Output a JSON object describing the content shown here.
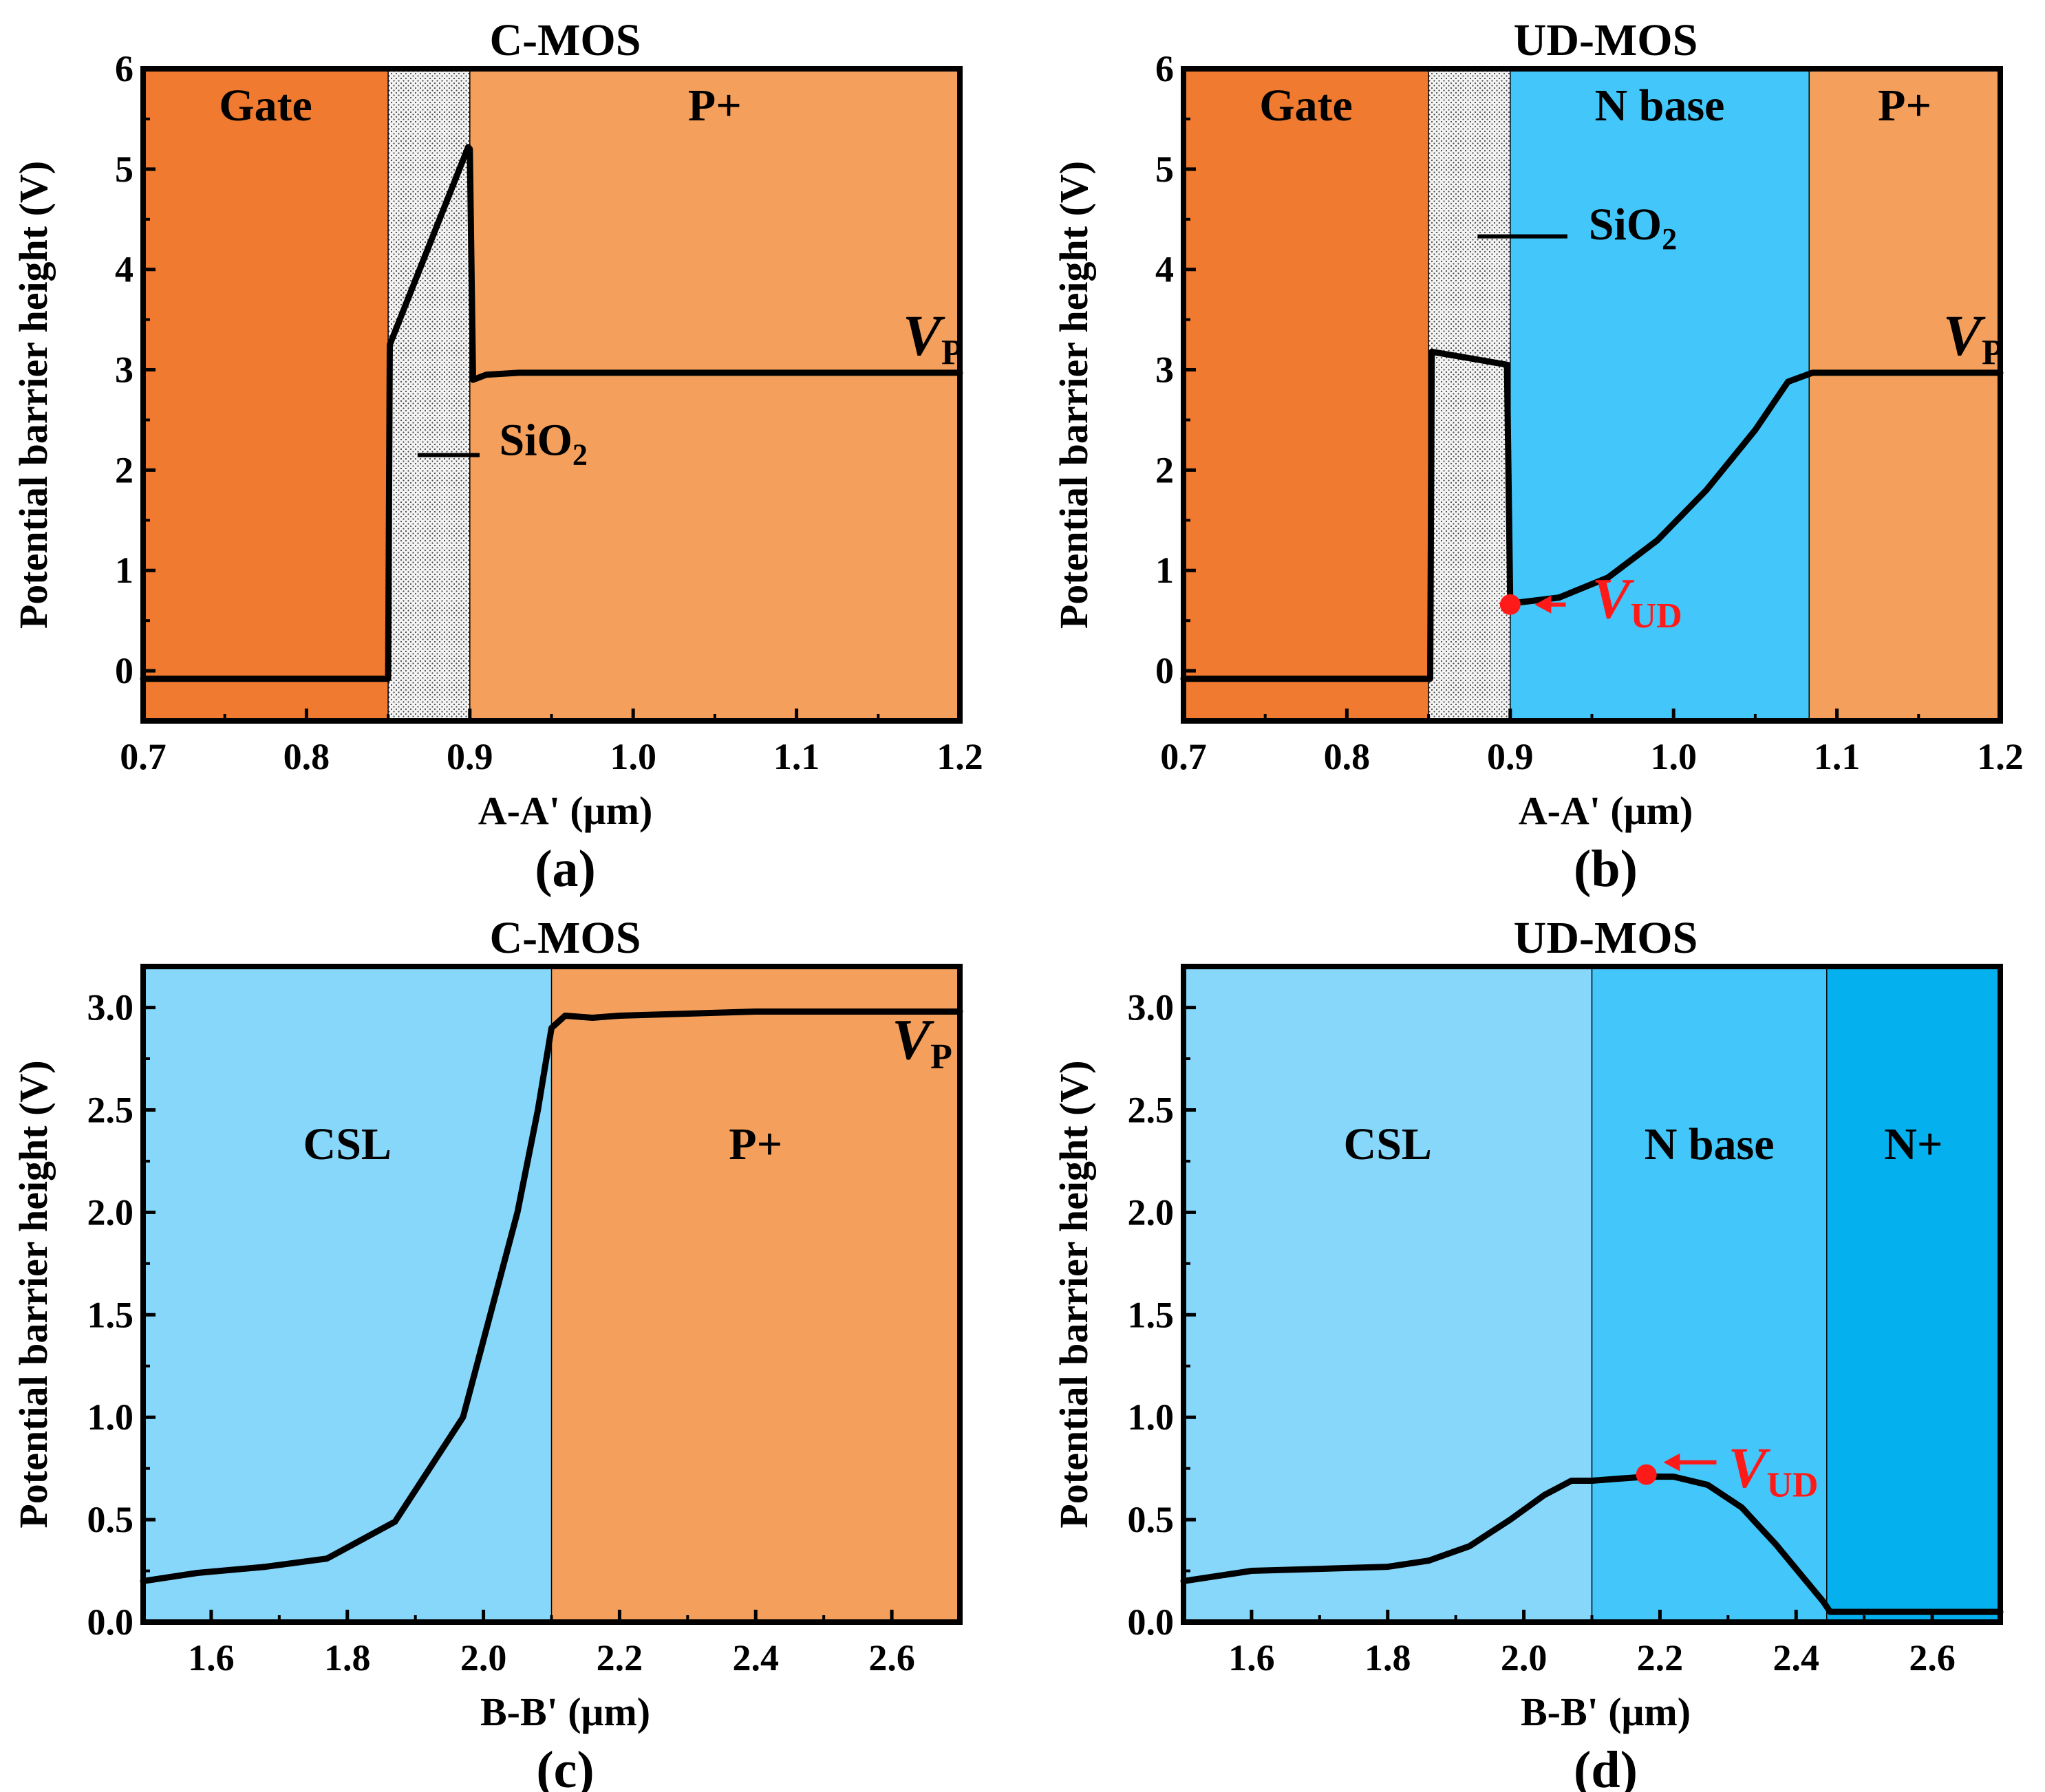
{
  "colors": {
    "gate": "#ef7a30",
    "p_plus": "#f4a05c",
    "csl": "#87d7fb",
    "n_base": "#43c7fb",
    "n_plus": "#05b0ee",
    "oxide": "#f4f4f4",
    "curve": "#000000",
    "marker": "#ff1a1a"
  },
  "chart_data": [
    {
      "panel": "a",
      "type": "line",
      "title": "C-MOS",
      "xlabel": "A-A' (μm)",
      "ylabel": "Potential barrier height (V)",
      "caption": "(a)",
      "xlim": [
        0.7,
        1.2
      ],
      "ylim": [
        -0.5,
        6
      ],
      "xticks": [
        0.7,
        0.8,
        0.9,
        1.0,
        1.1,
        1.2
      ],
      "xtick_labels": [
        "0.7",
        "0.8",
        "0.9",
        "1.0",
        "1.1",
        "1.2"
      ],
      "yticks": [
        0,
        1,
        2,
        3,
        4,
        5,
        6
      ],
      "ytick_labels": [
        "0",
        "1",
        "2",
        "3",
        "4",
        "5",
        "6"
      ],
      "regions": [
        {
          "label": "Gate",
          "x0": 0.7,
          "x1": 0.85,
          "fill": "gate"
        },
        {
          "label": "",
          "x0": 0.85,
          "x1": 0.9,
          "fill": "oxide"
        },
        {
          "label": "P+",
          "x0": 0.9,
          "x1": 1.2,
          "fill": "p_plus"
        }
      ],
      "series": [
        {
          "x": [
            0.7,
            0.85,
            0.851,
            0.899,
            0.9,
            0.902,
            0.91,
            0.93,
            0.97,
            1.2
          ],
          "y": [
            -0.08,
            -0.08,
            3.25,
            5.22,
            5.2,
            2.9,
            2.95,
            2.97,
            2.97,
            2.97
          ]
        }
      ],
      "annotations": [
        {
          "text": "SiO",
          "sub": "2",
          "at": [
            0.918,
            2.15
          ],
          "line_from": [
            0.868,
            2.15
          ],
          "line_to": [
            0.906,
            2.15
          ]
        },
        {
          "text": "V",
          "sub": "P",
          "italic": true,
          "at": [
            1.165,
            3.15
          ]
        }
      ]
    },
    {
      "panel": "b",
      "type": "line",
      "title": "UD-MOS",
      "xlabel": "A-A' (μm)",
      "ylabel": "Potential barrier height (V)",
      "caption": "(b)",
      "xlim": [
        0.7,
        1.2
      ],
      "ylim": [
        -0.5,
        6
      ],
      "xticks": [
        0.7,
        0.8,
        0.9,
        1.0,
        1.1,
        1.2
      ],
      "xtick_labels": [
        "0.7",
        "0.8",
        "0.9",
        "1.0",
        "1.1",
        "1.2"
      ],
      "yticks": [
        0,
        1,
        2,
        3,
        4,
        5,
        6
      ],
      "ytick_labels": [
        "0",
        "1",
        "2",
        "3",
        "4",
        "5",
        "6"
      ],
      "regions": [
        {
          "label": "Gate",
          "x0": 0.7,
          "x1": 0.85,
          "fill": "gate"
        },
        {
          "label": "",
          "x0": 0.85,
          "x1": 0.9,
          "fill": "oxide"
        },
        {
          "label": "N base",
          "x0": 0.9,
          "x1": 1.083,
          "fill": "n_base"
        },
        {
          "label": "P+",
          "x0": 1.083,
          "x1": 1.2,
          "fill": "p_plus"
        }
      ],
      "series": [
        {
          "x": [
            0.7,
            0.851,
            0.852,
            0.898,
            0.9,
            0.905,
            0.93,
            0.96,
            0.99,
            1.02,
            1.05,
            1.07,
            1.085,
            1.2
          ],
          "y": [
            -0.08,
            -0.08,
            3.18,
            3.05,
            0.68,
            0.68,
            0.73,
            0.93,
            1.3,
            1.8,
            2.4,
            2.88,
            2.97,
            2.97
          ]
        }
      ],
      "marker": {
        "x": 0.9,
        "y": 0.66
      },
      "annotations": [
        {
          "text": "SiO",
          "sub": "2",
          "at": [
            0.948,
            4.3
          ],
          "line_from": [
            0.88,
            4.33
          ],
          "line_to": [
            0.935,
            4.33
          ]
        },
        {
          "text": "V",
          "sub": "P",
          "italic": true,
          "at": [
            1.165,
            3.15
          ]
        },
        {
          "text": "V",
          "sub": "UD",
          "italic": true,
          "marker_label": true,
          "at": [
            0.95,
            0.53
          ],
          "arrow_from": [
            0.934,
            0.66
          ],
          "arrow_to": [
            0.915,
            0.66
          ]
        }
      ]
    },
    {
      "panel": "c",
      "type": "line",
      "title": "C-MOS",
      "xlabel": "B-B' (μm)",
      "ylabel": "Potential barrier height (V)",
      "caption": "(c)",
      "xlim": [
        1.5,
        2.7
      ],
      "ylim": [
        0,
        3.2
      ],
      "xticks": [
        1.6,
        1.8,
        2.0,
        2.2,
        2.4,
        2.6
      ],
      "xtick_labels": [
        "1.6",
        "1.8",
        "2.0",
        "2.2",
        "2.4",
        "2.6"
      ],
      "yticks": [
        0,
        0.5,
        1.0,
        1.5,
        2.0,
        2.5,
        3.0
      ],
      "ytick_labels": [
        "0.0",
        "0.5",
        "1.0",
        "1.5",
        "2.0",
        "2.5",
        "3.0"
      ],
      "regions": [
        {
          "label": "CSL",
          "x0": 1.5,
          "x1": 2.1,
          "fill": "csl"
        },
        {
          "label": "P+",
          "x0": 2.1,
          "x1": 2.7,
          "fill": "p_plus"
        }
      ],
      "series": [
        {
          "x": [
            1.5,
            1.58,
            1.68,
            1.77,
            1.87,
            1.97,
            2.05,
            2.08,
            2.1,
            2.12,
            2.16,
            2.2,
            2.4,
            2.7
          ],
          "y": [
            0.2,
            0.24,
            0.27,
            0.31,
            0.49,
            1.0,
            2.0,
            2.5,
            2.9,
            2.96,
            2.95,
            2.96,
            2.98,
            2.98
          ]
        }
      ],
      "annotations": [
        {
          "text": "V",
          "sub": "P",
          "italic": true,
          "at": [
            2.6,
            2.75
          ]
        }
      ]
    },
    {
      "panel": "d",
      "type": "line",
      "title": "UD-MOS",
      "xlabel": "B-B' (μm)",
      "ylabel": "Potential barrier height (V)",
      "caption": "(d)",
      "xlim": [
        1.5,
        2.7
      ],
      "ylim": [
        0,
        3.2
      ],
      "xticks": [
        1.6,
        1.8,
        2.0,
        2.2,
        2.4,
        2.6
      ],
      "xtick_labels": [
        "1.6",
        "1.8",
        "2.0",
        "2.2",
        "2.4",
        "2.6"
      ],
      "yticks": [
        0,
        0.5,
        1.0,
        1.5,
        2.0,
        2.5,
        3.0
      ],
      "ytick_labels": [
        "0.0",
        "0.5",
        "1.0",
        "1.5",
        "2.0",
        "2.5",
        "3.0"
      ],
      "regions": [
        {
          "label": "CSL",
          "x0": 1.5,
          "x1": 2.1,
          "fill": "csl"
        },
        {
          "label": "N base",
          "x0": 2.1,
          "x1": 2.445,
          "fill": "n_base"
        },
        {
          "label": "N+",
          "x0": 2.445,
          "x1": 2.7,
          "fill": "n_plus"
        }
      ],
      "series": [
        {
          "x": [
            1.5,
            1.6,
            1.7,
            1.8,
            1.86,
            1.92,
            1.98,
            2.03,
            2.07,
            2.1,
            2.14,
            2.18,
            2.22,
            2.27,
            2.32,
            2.37,
            2.41,
            2.44,
            2.45,
            2.7
          ],
          "y": [
            0.2,
            0.25,
            0.26,
            0.27,
            0.3,
            0.37,
            0.5,
            0.62,
            0.69,
            0.69,
            0.7,
            0.71,
            0.71,
            0.67,
            0.56,
            0.38,
            0.22,
            0.1,
            0.05,
            0.05
          ]
        }
      ],
      "marker": {
        "x": 2.18,
        "y": 0.72
      },
      "annotations": [
        {
          "text": "V",
          "sub": "UD",
          "italic": true,
          "marker_label": true,
          "at": [
            2.3,
            0.66
          ],
          "arrow_from": [
            2.283,
            0.78
          ],
          "arrow_to": [
            2.205,
            0.78
          ]
        }
      ]
    }
  ]
}
